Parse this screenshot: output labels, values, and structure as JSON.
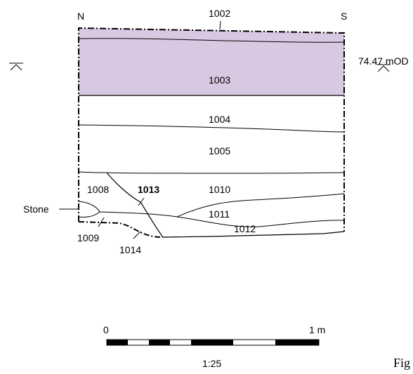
{
  "section": {
    "orientation_left": "N",
    "orientation_right": "S",
    "datum_label": "74.47 mOD",
    "shaded_layer_color": "#d9c8e2",
    "contexts": {
      "c1002": "1002",
      "c1003": "1003",
      "c1004": "1004",
      "c1005": "1005",
      "c1008": "1008",
      "c1009": "1009",
      "c1010": "1010",
      "c1011": "1011",
      "c1012": "1012",
      "c1013": "1013",
      "c1014": "1014"
    },
    "stone_label": "Stone"
  },
  "scale_bar": {
    "start_label": "0",
    "end_label": "1 m",
    "ratio_label": "1:25"
  },
  "caption": {
    "text": "Fig"
  }
}
